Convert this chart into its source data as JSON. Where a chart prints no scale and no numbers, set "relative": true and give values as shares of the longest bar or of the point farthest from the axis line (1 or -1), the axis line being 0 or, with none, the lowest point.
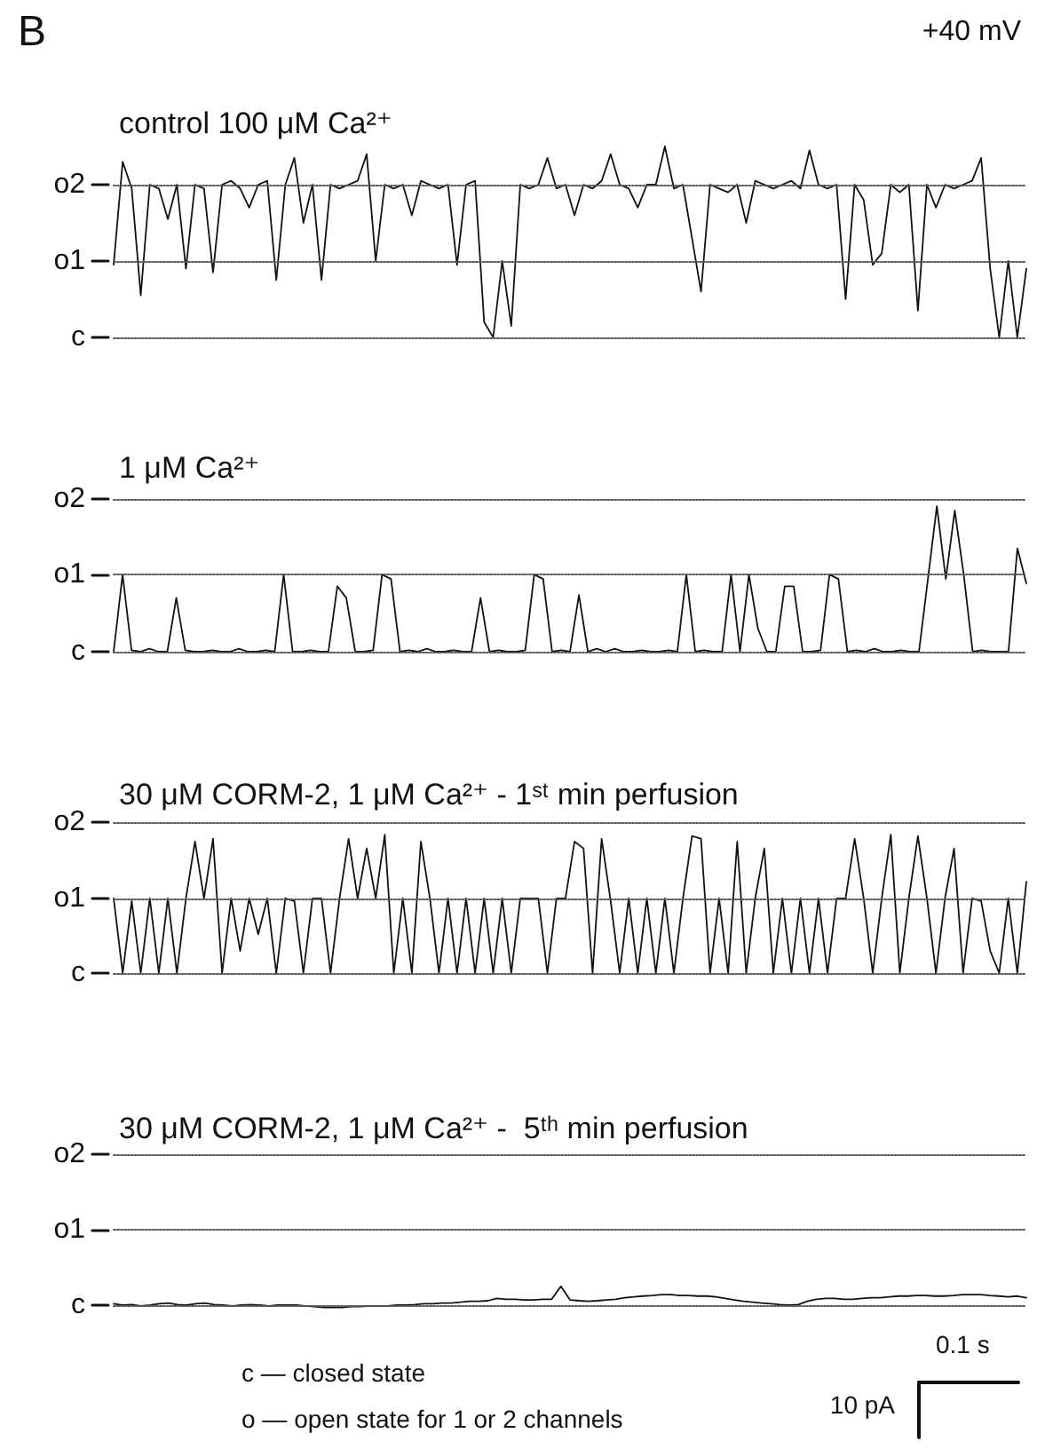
{
  "chart_data": [
    {
      "type": "line",
      "title": "control 100 μM Ca²⁺",
      "annotations": [
        "B",
        "+40 mV"
      ],
      "relative": true,
      "ref_lines": [
        {
          "axis": "y",
          "value": 0,
          "label": "c",
          "line_style": "dotted"
        },
        {
          "axis": "y",
          "value": 0.4,
          "label": "o1",
          "line_style": "dotted"
        },
        {
          "axis": "y",
          "value": 0.8,
          "label": "o2",
          "line_style": "dotted"
        }
      ],
      "categories": [
        null,
        null,
        null,
        null,
        null,
        null,
        null,
        null,
        null,
        null,
        null,
        null,
        null,
        null,
        null,
        null,
        null,
        null,
        null,
        null,
        null,
        null,
        null,
        null,
        null,
        null,
        null,
        null,
        null,
        null,
        null,
        null,
        null,
        null,
        null,
        null,
        null,
        null,
        null,
        null,
        null,
        null,
        null,
        null,
        null,
        null,
        null,
        null,
        null,
        null,
        null,
        null,
        null,
        null,
        null,
        null,
        null,
        null,
        null,
        null,
        null,
        null,
        null,
        null,
        null,
        null,
        null,
        null,
        null,
        null,
        null,
        null,
        null,
        null,
        null,
        null,
        null,
        null,
        null,
        null,
        null,
        null,
        null,
        null,
        null,
        null,
        null,
        null,
        null,
        null,
        null,
        null,
        null,
        null,
        null,
        null,
        null,
        null,
        null,
        null,
        null,
        null
      ],
      "series": [
        {
          "color": "#111111",
          "values": [
            0.38,
            0.92,
            0.78,
            0.22,
            0.8,
            0.78,
            0.62,
            0.8,
            0.36,
            0.8,
            0.78,
            0.34,
            0.8,
            0.82,
            0.78,
            0.68,
            0.8,
            0.82,
            0.3,
            0.8,
            0.94,
            0.6,
            0.8,
            0.3,
            0.8,
            0.78,
            0.8,
            0.82,
            0.96,
            0.4,
            0.8,
            0.78,
            0.8,
            0.64,
            0.82,
            0.8,
            0.78,
            0.8,
            0.38,
            0.8,
            0.82,
            0.08,
            0.0,
            0.4,
            0.06,
            0.8,
            0.78,
            0.8,
            0.94,
            0.78,
            0.8,
            0.64,
            0.8,
            0.78,
            0.82,
            0.96,
            0.8,
            0.78,
            0.68,
            0.8,
            0.8,
            1.0,
            0.78,
            0.8,
            0.52,
            0.24,
            0.8,
            0.78,
            0.76,
            0.8,
            0.6,
            0.82,
            0.8,
            0.78,
            0.8,
            0.82,
            0.78,
            0.98,
            0.8,
            0.78,
            0.8,
            0.2,
            0.8,
            0.72,
            0.38,
            0.44,
            0.8,
            0.76,
            0.8,
            0.14,
            0.8,
            0.68,
            0.8,
            0.78,
            0.8,
            0.82,
            0.94,
            0.36,
            0.0,
            0.4,
            0.0,
            0.36
          ]
        }
      ]
    },
    {
      "type": "line",
      "title": "1 μM Ca²⁺",
      "relative": true,
      "ref_lines": [
        {
          "axis": "y",
          "value": 0,
          "label": "c",
          "line_style": "dotted"
        },
        {
          "axis": "y",
          "value": 0.53,
          "label": "o1",
          "line_style": "dotted"
        },
        {
          "axis": "y",
          "value": 1.05,
          "label": "o2",
          "line_style": "dotted"
        }
      ],
      "categories": [
        null,
        null,
        null,
        null,
        null,
        null,
        null,
        null,
        null,
        null,
        null,
        null,
        null,
        null,
        null,
        null,
        null,
        null,
        null,
        null,
        null,
        null,
        null,
        null,
        null,
        null,
        null,
        null,
        null,
        null,
        null,
        null,
        null,
        null,
        null,
        null,
        null,
        null,
        null,
        null,
        null,
        null,
        null,
        null,
        null,
        null,
        null,
        null,
        null,
        null,
        null,
        null,
        null,
        null,
        null,
        null,
        null,
        null,
        null,
        null,
        null,
        null,
        null,
        null,
        null,
        null,
        null,
        null,
        null,
        null,
        null,
        null,
        null,
        null,
        null,
        null,
        null,
        null,
        null,
        null,
        null,
        null,
        null,
        null,
        null,
        null,
        null,
        null,
        null,
        null,
        null,
        null,
        null,
        null,
        null,
        null,
        null,
        null,
        null,
        null,
        null,
        null,
        null
      ],
      "series": [
        {
          "color": "#111111",
          "values": [
            0,
            0.53,
            0.01,
            0,
            0.02,
            0,
            0,
            0.37,
            0.01,
            0,
            0,
            0.01,
            0,
            0,
            0.02,
            0,
            0,
            0.01,
            0,
            0.53,
            0,
            0,
            0.01,
            0,
            0,
            0.45,
            0.37,
            0,
            0,
            0.01,
            0.53,
            0.5,
            0,
            0.01,
            0,
            0.02,
            0,
            0,
            0.01,
            0,
            0,
            0.37,
            0,
            0.01,
            0,
            0,
            0.01,
            0.53,
            0.5,
            0,
            0.01,
            0,
            0.39,
            0,
            0.02,
            0,
            0.02,
            0,
            0,
            0.01,
            0,
            0,
            0.01,
            0,
            0.53,
            0,
            0.01,
            0,
            0,
            0.53,
            0,
            0.53,
            0.16,
            0,
            0,
            0.45,
            0.45,
            0,
            0,
            0.01,
            0.53,
            0.5,
            0,
            0.01,
            0,
            0.02,
            0,
            0,
            0.01,
            0,
            0,
            0.5,
            1.0,
            0.5,
            0.97,
            0.53,
            0,
            0.01,
            0,
            0,
            0,
            0.71,
            0.47
          ]
        }
      ]
    },
    {
      "type": "line",
      "title": "30 μM CORM-2, 1 μM Ca²⁺ - 1ˢᵗ min perfusion",
      "relative": true,
      "ref_lines": [
        {
          "axis": "y",
          "value": 0,
          "label": "c",
          "line_style": "dotted"
        },
        {
          "axis": "y",
          "value": 0.54,
          "label": "o1",
          "line_style": "dotted"
        },
        {
          "axis": "y",
          "value": 1.09,
          "label": "o2",
          "line_style": "dotted"
        }
      ],
      "categories": [
        null,
        null,
        null,
        null,
        null,
        null,
        null,
        null,
        null,
        null,
        null,
        null,
        null,
        null,
        null,
        null,
        null,
        null,
        null,
        null,
        null,
        null,
        null,
        null,
        null,
        null,
        null,
        null,
        null,
        null,
        null,
        null,
        null,
        null,
        null,
        null,
        null,
        null,
        null,
        null,
        null,
        null,
        null,
        null,
        null,
        null,
        null,
        null,
        null,
        null,
        null,
        null,
        null,
        null,
        null,
        null,
        null,
        null,
        null,
        null,
        null,
        null,
        null,
        null,
        null,
        null,
        null,
        null,
        null,
        null,
        null,
        null,
        null,
        null,
        null,
        null,
        null,
        null,
        null,
        null,
        null,
        null,
        null,
        null,
        null,
        null,
        null,
        null,
        null,
        null,
        null,
        null,
        null,
        null,
        null,
        null,
        null,
        null,
        null,
        null,
        null,
        null
      ],
      "series": [
        {
          "color": "#111111",
          "values": [
            0.54,
            0,
            0.52,
            0,
            0.54,
            0,
            0.54,
            0,
            0.54,
            0.95,
            0.54,
            0.97,
            0,
            0.54,
            0.16,
            0.54,
            0.28,
            0.54,
            0,
            0.54,
            0.52,
            0,
            0.54,
            0.54,
            0,
            0.54,
            0.97,
            0.54,
            0.9,
            0.54,
            1.0,
            0,
            0.54,
            0,
            0.95,
            0.54,
            0,
            0.54,
            0,
            0.54,
            0,
            0.54,
            0,
            0.54,
            0,
            0.54,
            0.54,
            0.54,
            0,
            0.54,
            0.54,
            0.95,
            0.9,
            0,
            0.97,
            0.52,
            0,
            0.54,
            0,
            0.54,
            0,
            0.54,
            0,
            0.54,
            0.99,
            0.97,
            0,
            0.54,
            0,
            0.95,
            0,
            0.54,
            0.9,
            0,
            0.54,
            0,
            0.54,
            0,
            0.54,
            0,
            0.54,
            0.54,
            0.97,
            0.54,
            0,
            0.54,
            1.0,
            0,
            0.54,
            0.99,
            0.54,
            0,
            0.54,
            0.9,
            0,
            0.54,
            0.52,
            0.16,
            0,
            0.54,
            0,
            0.66
          ]
        }
      ]
    },
    {
      "type": "line",
      "title": "30 μM CORM-2, 1 μM Ca²⁺ -  5ᵗʰ min perfusion",
      "annotations": [
        "0.1 s",
        "10 pA",
        "c — closed state",
        "o — open state for 1 or 2 channels"
      ],
      "relative": true,
      "ref_lines": [
        {
          "axis": "y",
          "value": 0.11,
          "label": "c",
          "line_style": "dotted"
        },
        {
          "axis": "y",
          "value": 3.68,
          "label": "o1",
          "line_style": "dotted"
        },
        {
          "axis": "y",
          "value": 7.25,
          "label": "o2",
          "line_style": "dotted"
        }
      ],
      "categories": [
        null,
        null,
        null,
        null,
        null,
        null,
        null,
        null,
        null,
        null,
        null,
        null,
        null,
        null,
        null,
        null,
        null,
        null,
        null,
        null,
        null,
        null,
        null,
        null,
        null,
        null,
        null,
        null,
        null,
        null,
        null,
        null,
        null,
        null,
        null,
        null,
        null,
        null,
        null,
        null,
        null,
        null,
        null,
        null,
        null,
        null,
        null,
        null,
        null,
        null,
        null,
        null,
        null,
        null,
        null,
        null,
        null,
        null,
        null,
        null,
        null,
        null,
        null,
        null,
        null,
        null,
        null,
        null,
        null,
        null,
        null,
        null,
        null,
        null,
        null,
        null,
        null,
        null,
        null,
        null,
        null,
        null,
        null,
        null,
        null,
        null,
        null,
        null,
        null,
        null,
        null,
        null,
        null,
        null,
        null,
        null,
        null,
        null,
        null,
        null,
        null
      ],
      "series": [
        {
          "color": "#111111",
          "values": [
            0.18,
            0.11,
            0.14,
            0.07,
            0.11,
            0.18,
            0.21,
            0.14,
            0.11,
            0.18,
            0.21,
            0.14,
            0.11,
            0.07,
            0.11,
            0.14,
            0.11,
            0.07,
            0.11,
            0.11,
            0.11,
            0.07,
            0.04,
            0,
            0,
            0,
            0.04,
            0.04,
            0.07,
            0.07,
            0.07,
            0.11,
            0.11,
            0.14,
            0.18,
            0.18,
            0.21,
            0.21,
            0.25,
            0.29,
            0.29,
            0.32,
            0.43,
            0.39,
            0.39,
            0.36,
            0.36,
            0.39,
            0.39,
            1.0,
            0.36,
            0.32,
            0.29,
            0.32,
            0.36,
            0.39,
            0.46,
            0.5,
            0.54,
            0.57,
            0.61,
            0.61,
            0.57,
            0.57,
            0.54,
            0.54,
            0.5,
            0.43,
            0.36,
            0.29,
            0.25,
            0.21,
            0.18,
            0.14,
            0.11,
            0.14,
            0.29,
            0.39,
            0.43,
            0.43,
            0.39,
            0.39,
            0.43,
            0.46,
            0.46,
            0.5,
            0.54,
            0.54,
            0.57,
            0.57,
            0.54,
            0.54,
            0.57,
            0.61,
            0.61,
            0.61,
            0.57,
            0.54,
            0.5,
            0.54,
            0.46
          ]
        }
      ]
    }
  ]
}
